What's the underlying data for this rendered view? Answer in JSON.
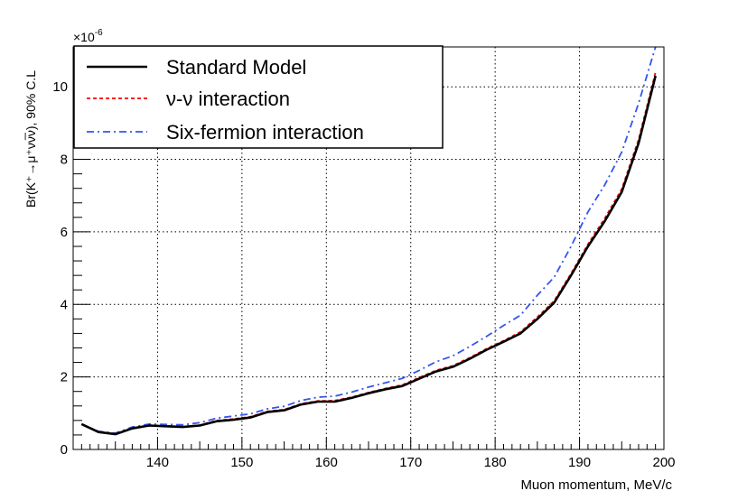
{
  "chart_data": {
    "type": "line",
    "title": "",
    "xlabel": "Muon momentum, MeV/c",
    "ylabel": "Br(K⁺→μ⁺νν̅ν), 90% C.L",
    "y_exponent_label": "×10",
    "y_exponent_power": "-6",
    "xlim": [
      130,
      200
    ],
    "ylim": [
      0,
      11.1
    ],
    "xticks": [
      140,
      150,
      160,
      170,
      180,
      190,
      200
    ],
    "xtick_labels": [
      "140",
      "150",
      "160",
      "170",
      "180",
      "190",
      "200"
    ],
    "yticks": [
      0,
      2,
      4,
      6,
      8,
      10
    ],
    "ytick_labels": [
      "0",
      "2",
      "4",
      "6",
      "8",
      "10"
    ],
    "grid": true,
    "legend_position": "top-left",
    "series": [
      {
        "name": "Standard Model",
        "color": "#000000",
        "dash": "solid",
        "x": [
          131,
          133,
          135,
          137,
          139,
          141,
          143,
          145,
          147,
          149,
          151,
          153,
          155,
          157,
          159,
          161,
          163,
          165,
          167,
          169,
          171,
          173,
          175,
          177,
          179,
          181,
          183,
          185,
          187,
          189,
          191,
          193,
          195,
          197,
          199
        ],
        "y": [
          0.7,
          0.48,
          0.42,
          0.58,
          0.66,
          0.64,
          0.62,
          0.66,
          0.78,
          0.82,
          0.88,
          1.03,
          1.08,
          1.24,
          1.32,
          1.32,
          1.42,
          1.55,
          1.66,
          1.75,
          1.95,
          2.15,
          2.28,
          2.5,
          2.75,
          2.97,
          3.2,
          3.6,
          4.05,
          4.8,
          5.6,
          6.3,
          7.1,
          8.45,
          10.3
        ]
      },
      {
        "name": "ν-ν interaction",
        "color": "#ff0000",
        "dash": "dotted",
        "x": [
          131,
          133,
          135,
          137,
          139,
          141,
          143,
          145,
          147,
          149,
          151,
          153,
          155,
          157,
          159,
          161,
          163,
          165,
          167,
          169,
          171,
          173,
          175,
          177,
          179,
          181,
          183,
          185,
          187,
          189,
          191,
          193,
          195,
          197,
          199
        ],
        "y": [
          0.7,
          0.49,
          0.43,
          0.59,
          0.67,
          0.65,
          0.63,
          0.67,
          0.8,
          0.84,
          0.9,
          1.05,
          1.1,
          1.26,
          1.34,
          1.35,
          1.44,
          1.57,
          1.68,
          1.78,
          1.98,
          2.18,
          2.31,
          2.53,
          2.78,
          3.0,
          3.24,
          3.65,
          4.1,
          4.85,
          5.66,
          6.38,
          7.18,
          8.55,
          10.4
        ]
      },
      {
        "name": "Six-fermion interaction",
        "color": "#3355ee",
        "dash": "dashdot",
        "x": [
          131,
          133,
          135,
          137,
          139,
          141,
          143,
          145,
          147,
          149,
          151,
          153,
          155,
          157,
          159,
          161,
          163,
          165,
          167,
          169,
          171,
          173,
          175,
          177,
          179,
          181,
          183,
          185,
          187,
          189,
          191,
          193,
          195,
          197,
          199
        ],
        "y": [
          0.7,
          0.5,
          0.45,
          0.62,
          0.7,
          0.69,
          0.68,
          0.74,
          0.86,
          0.92,
          0.98,
          1.12,
          1.19,
          1.35,
          1.44,
          1.47,
          1.58,
          1.72,
          1.84,
          1.96,
          2.18,
          2.42,
          2.58,
          2.84,
          3.12,
          3.42,
          3.7,
          4.25,
          4.75,
          5.6,
          6.55,
          7.3,
          8.2,
          9.55,
          11.1
        ]
      }
    ]
  }
}
